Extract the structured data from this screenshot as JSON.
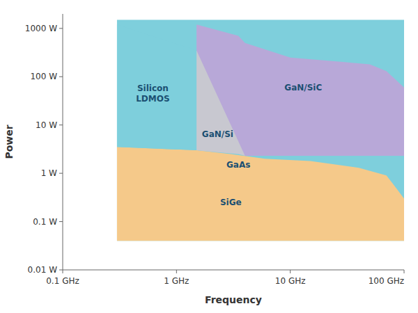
{
  "chart_data": {
    "type": "area",
    "title": "",
    "x_label": "Frequency",
    "y_label": "Power",
    "log": true,
    "grid": false,
    "xlim": [
      0.1,
      100
    ],
    "ylim": [
      0.01,
      1995.2623149688789
    ],
    "xticks": [
      {
        "value": 0.1,
        "label": "0.1 GHz"
      },
      {
        "value": 1,
        "label": "1 GHz"
      },
      {
        "value": 10,
        "label": "10 GHz"
      },
      {
        "value": 100,
        "label": "100 GHz"
      }
    ],
    "yticks": [
      {
        "value": 0.01,
        "label": "0.01 W"
      },
      {
        "value": 0.1,
        "label": "0.1 W"
      },
      {
        "value": 1,
        "label": "1 W"
      },
      {
        "value": 10,
        "label": "10 W"
      },
      {
        "value": 100,
        "label": "100 W"
      },
      {
        "value": 1000,
        "label": "1000 W"
      }
    ],
    "series": [
      {
        "name": "SiGe",
        "color": "#7ecfdc",
        "x": [
          0.3,
          0.3,
          1.0,
          3.0,
          10.0,
          30.0,
          70.0,
          100.0,
          100.0,
          0.3
        ],
        "values": [
          2.0,
          1500.0,
          1500.0,
          1500.0,
          1500.0,
          1500.0,
          1500.0,
          1500.0,
          0.04,
          0.04
        ]
      },
      {
        "name": "GaAs",
        "color": "#f5c98a",
        "x": [
          0.3,
          0.3,
          1.5,
          3.0,
          6.0,
          15.0,
          40.0,
          70.0,
          80.0,
          100.0,
          100.0,
          0.3
        ],
        "values": [
          2.0,
          3.5,
          3.0,
          2.5,
          2.0,
          1.8,
          1.3,
          0.9,
          0.6,
          0.3,
          0.04,
          0.04
        ]
      },
      {
        "name": "Silicon\nLDMOS",
        "color": "#7ecfdc",
        "x": [
          0.3,
          0.3,
          1.5,
          1.5
        ],
        "values": [
          3.5,
          1200.0,
          350.0,
          3.0
        ]
      },
      {
        "name": "GaN/Si",
        "color": "#c8c8d0",
        "x": [
          1.5,
          1.5,
          2.0,
          3.5,
          4.0,
          4.0,
          1.5
        ],
        "values": [
          350.0,
          3.0,
          2.8,
          2.5,
          2.3,
          30.0,
          350.0
        ]
      },
      {
        "name": "GaN/SiC",
        "color": "#b8a8d8",
        "x": [
          1.5,
          1.5,
          3.5,
          4.0,
          10.0,
          30.0,
          50.0,
          70.0,
          100.0,
          100.0,
          15.0,
          4.0,
          1.5
        ],
        "values": [
          350.0,
          1200.0,
          700.0,
          500.0,
          250.0,
          200.0,
          180.0,
          130.0,
          60.0,
          2.3,
          2.3,
          2.3,
          350.0
        ]
      }
    ],
    "annotations": [
      {
        "text": "SiGe",
        "x": 3.0,
        "y": 0.25,
        "color": "#1b4f72"
      },
      {
        "text": "GaAs",
        "x": 3.5,
        "y": 1.5,
        "color": "#1b4f72"
      },
      {
        "text": "Silicon\nLDMOS",
        "x": 0.62,
        "y": 45.0,
        "color": "#1b4f72"
      },
      {
        "text": "GaN/Si",
        "x": 2.3,
        "y": 6.5,
        "color": "#1b4f72"
      },
      {
        "text": "GaN/SiC",
        "x": 13.0,
        "y": 60.0,
        "color": "#1b4f72"
      }
    ]
  }
}
